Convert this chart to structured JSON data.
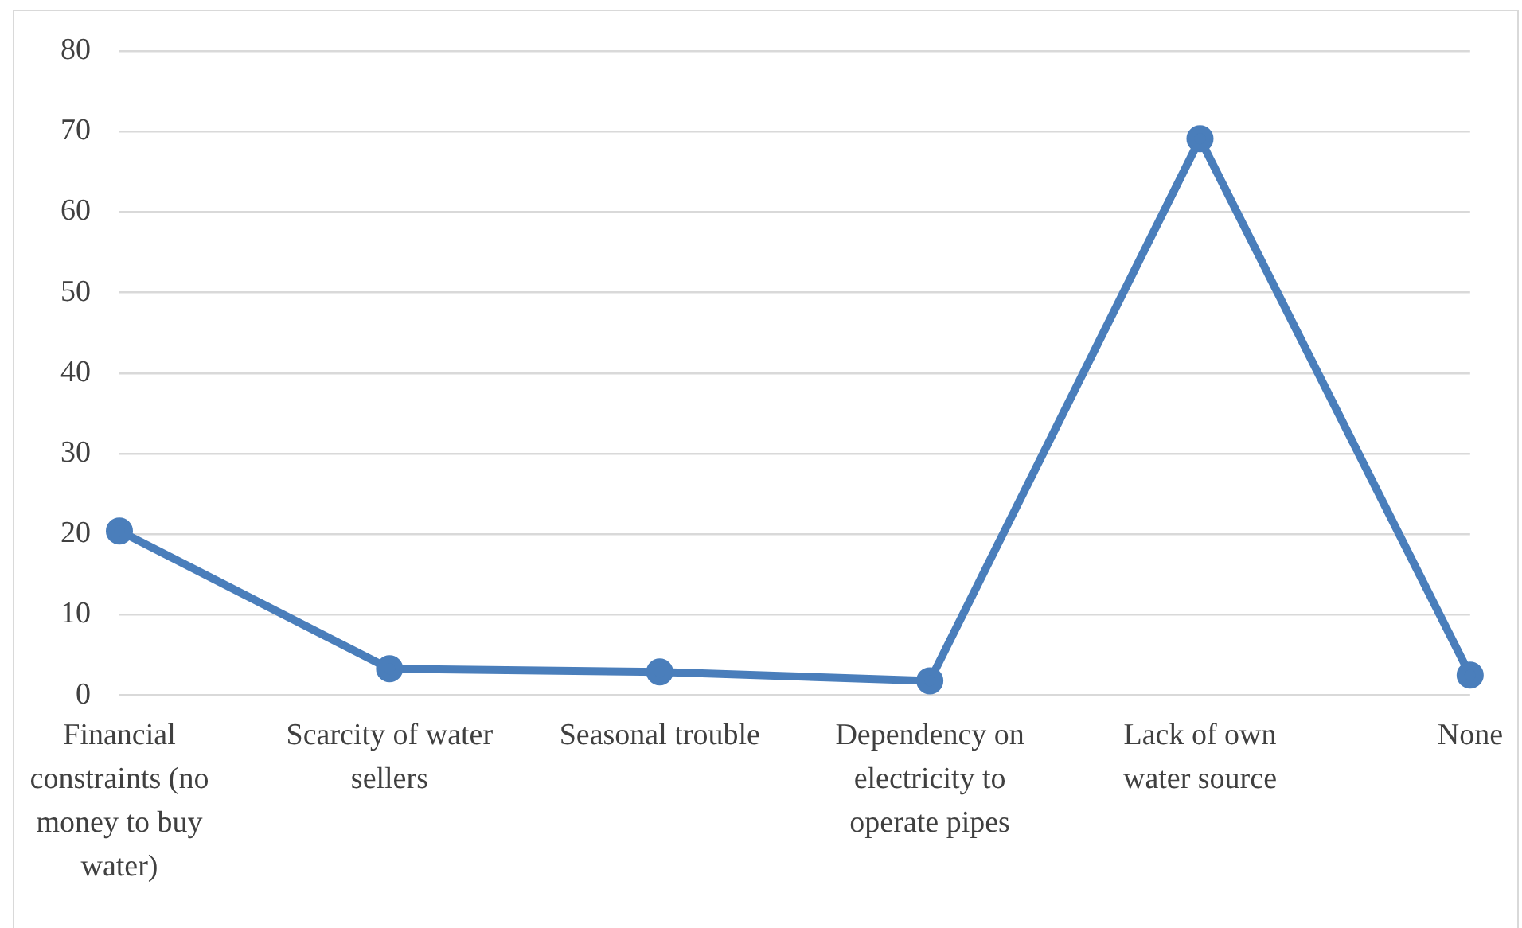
{
  "chart_data": {
    "type": "line",
    "categories": [
      "Financial constraints (no money to buy water)",
      "Scarcity of water sellers",
      "Seasonal trouble",
      "Dependency on electricity to operate pipes",
      "Lack of own water source",
      "None"
    ],
    "series": [
      {
        "color": "#4a7ebb",
        "values": [
          20.4,
          3.3,
          2.9,
          1.8,
          69.1,
          2.5
        ]
      }
    ],
    "ylim": [
      0,
      80
    ],
    "yticks": [
      0,
      10,
      20,
      30,
      40,
      50,
      60,
      70,
      80
    ],
    "grid": "y",
    "legend": false,
    "marker": "circle",
    "line_style": "solid"
  }
}
